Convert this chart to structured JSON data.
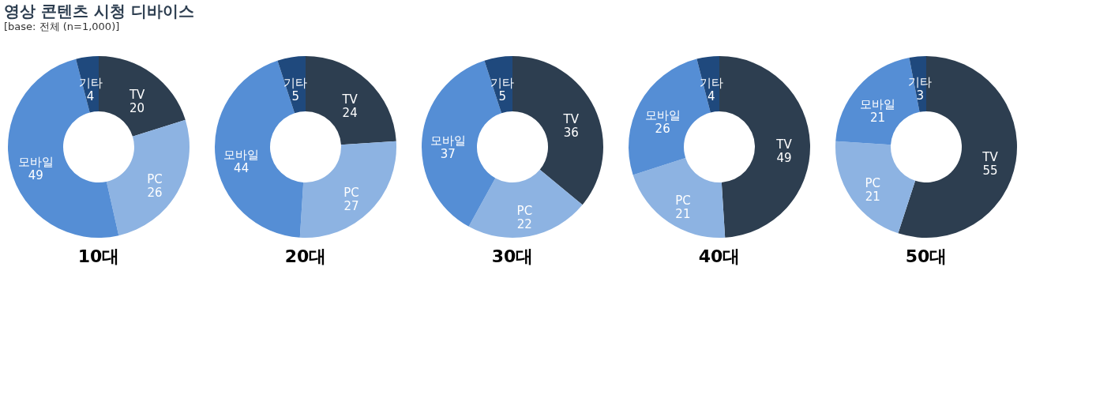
{
  "chart_data": [
    {
      "type": "donut",
      "title": "영상 콘텐츠 시청 디바이스",
      "annotations": [
        "[base: 전체 (n=1,000)]"
      ],
      "xlabel": "10대",
      "categories": [
        "TV",
        "PC",
        "모바일",
        "기타"
      ],
      "values": [
        20,
        26,
        49,
        4
      ],
      "colors": [
        "#2d3e50",
        "#8db3e2",
        "#558ed5",
        "#1f497d"
      ],
      "data_labels": true
    },
    {
      "type": "donut",
      "xlabel": "20대",
      "categories": [
        "TV",
        "PC",
        "모바일",
        "기타"
      ],
      "values": [
        24,
        27,
        44,
        5
      ],
      "colors": [
        "#2d3e50",
        "#8db3e2",
        "#558ed5",
        "#1f497d"
      ],
      "data_labels": true
    },
    {
      "type": "donut",
      "xlabel": "30대",
      "categories": [
        "TV",
        "PC",
        "모바일",
        "기타"
      ],
      "values": [
        36,
        22,
        37,
        5
      ],
      "colors": [
        "#2d3e50",
        "#8db3e2",
        "#558ed5",
        "#1f497d"
      ],
      "data_labels": true
    },
    {
      "type": "donut",
      "xlabel": "40대",
      "categories": [
        "TV",
        "PC",
        "모바일",
        "기타"
      ],
      "values": [
        49,
        21,
        26,
        4
      ],
      "colors": [
        "#2d3e50",
        "#8db3e2",
        "#558ed5",
        "#1f497d"
      ],
      "data_labels": true
    },
    {
      "type": "donut",
      "xlabel": "50대",
      "categories": [
        "TV",
        "PC",
        "모바일",
        "기타"
      ],
      "values": [
        55,
        21,
        21,
        3
      ],
      "colors": [
        "#2d3e50",
        "#8db3e2",
        "#558ed5",
        "#1f497d"
      ],
      "data_labels": true
    }
  ]
}
